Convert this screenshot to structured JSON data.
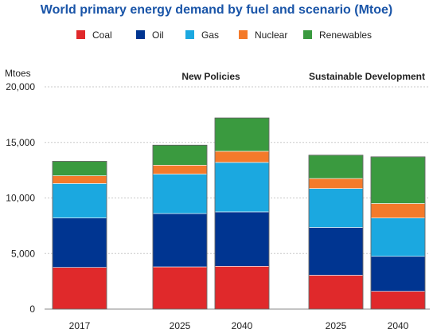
{
  "chart_data": {
    "type": "bar",
    "stacked": true,
    "title": "World primary energy demand by fuel and scenario (Mtoe)",
    "ylabel": "Mtoes",
    "ylim": [
      0,
      20000
    ],
    "yticks": [
      0,
      5000,
      10000,
      15000,
      20000
    ],
    "ytick_labels": [
      "0",
      "5,000",
      "10,000",
      "15,000",
      "20,000"
    ],
    "grid": "horizontal-dotted",
    "legend_position": "top",
    "groups": [
      {
        "label": "",
        "categories": [
          "2017"
        ]
      },
      {
        "label": "New Policies",
        "categories": [
          "2025",
          "2040"
        ]
      },
      {
        "label": "Sustainable Development",
        "categories": [
          "2025",
          "2040"
        ]
      }
    ],
    "categories": [
      "2017",
      "2025",
      "2040",
      "2025",
      "2040"
    ],
    "series": [
      {
        "name": "Coal",
        "color": "#e0292b",
        "values": [
          3750,
          3800,
          3850,
          3050,
          1600
        ]
      },
      {
        "name": "Oil",
        "color": "#003591",
        "values": [
          4450,
          4800,
          4900,
          4300,
          3150
        ]
      },
      {
        "name": "Gas",
        "color": "#1ba8e0",
        "values": [
          3100,
          3550,
          4450,
          3500,
          3450
        ]
      },
      {
        "name": "Nuclear",
        "color": "#f47a2a",
        "values": [
          700,
          800,
          1000,
          900,
          1300
        ]
      },
      {
        "name": "Renewables",
        "color": "#3a9a3f",
        "values": [
          1300,
          1800,
          3000,
          2100,
          4200
        ]
      }
    ]
  }
}
